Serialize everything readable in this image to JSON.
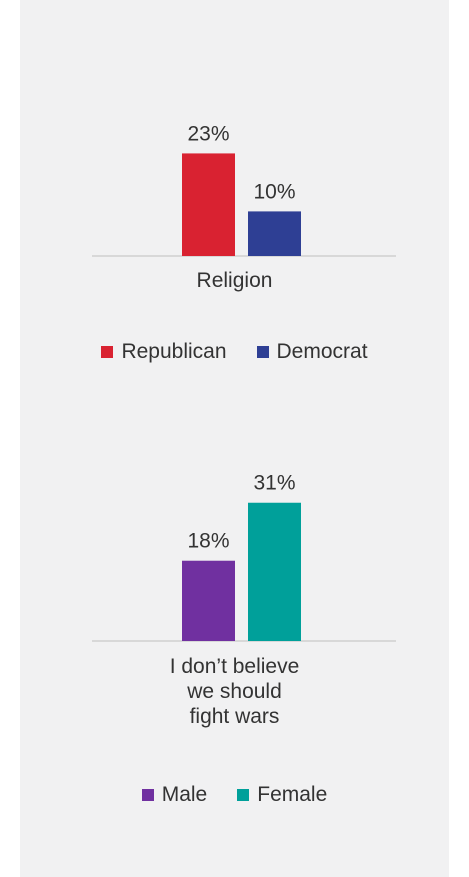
{
  "chart_data": [
    {
      "type": "bar",
      "categories": [
        "Religion"
      ],
      "series": [
        {
          "name": "Republican",
          "values": [
            23
          ],
          "color": "#d92231"
        },
        {
          "name": "Democrat",
          "values": [
            10
          ],
          "color": "#2e3f94"
        }
      ],
      "value_labels": [
        "23%",
        "10%"
      ],
      "ylim": [
        0,
        35
      ],
      "legend": "bottom"
    },
    {
      "type": "bar",
      "categories": [
        "I don’t believe we should fight wars"
      ],
      "category_lines": [
        "I don’t believe",
        "we should",
        "fight wars"
      ],
      "series": [
        {
          "name": "Male",
          "values": [
            18
          ],
          "color": "#7030a0"
        },
        {
          "name": "Female",
          "values": [
            31
          ],
          "color": "#00a09a"
        }
      ],
      "value_labels": [
        "18%",
        "31%"
      ],
      "ylim": [
        0,
        35
      ],
      "legend": "bottom"
    }
  ]
}
